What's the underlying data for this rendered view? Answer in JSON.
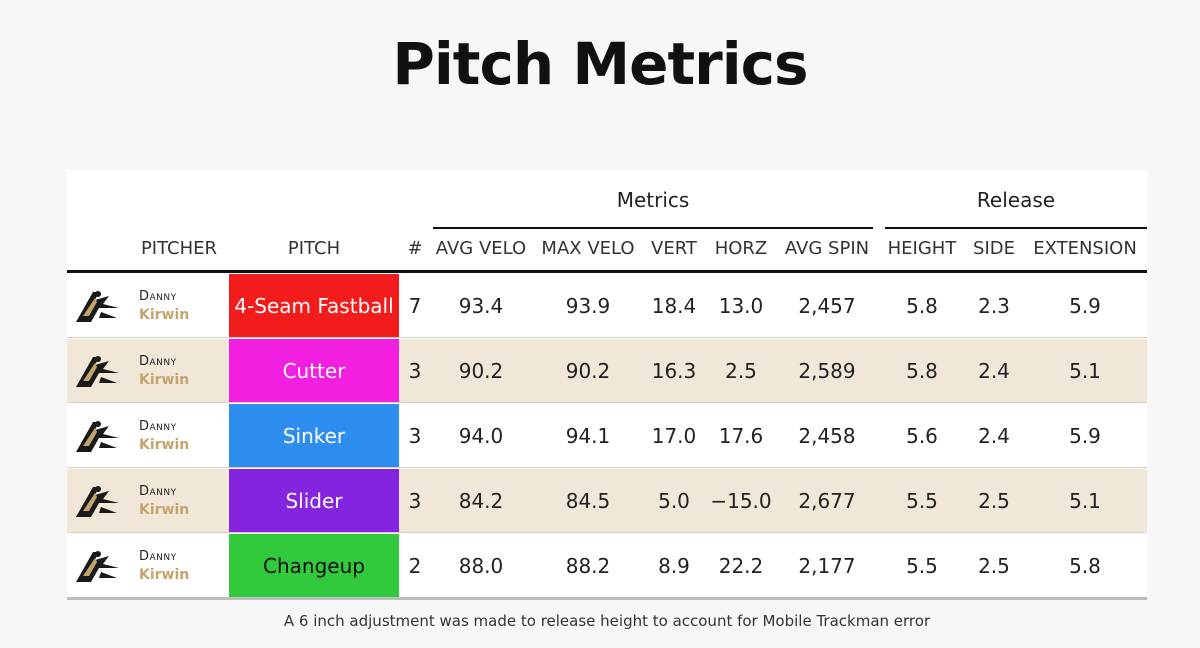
{
  "title": "Pitch Metrics",
  "groups": {
    "metrics": "Metrics",
    "release": "Release"
  },
  "columns": {
    "pitcher": "PITCHER",
    "pitch": "PITCH",
    "count": "#",
    "avg_velo": "AVG VELO",
    "max_velo": "MAX VELO",
    "vert": "VERT",
    "horz": "HORZ",
    "avg_spin": "AVG SPIN",
    "height": "HEIGHT",
    "side": "SIDE",
    "extension": "EXTENSION"
  },
  "rows": [
    {
      "first": "Danny",
      "last": "Kirwin",
      "pitch": "4-Seam Fastball",
      "color": "#f21c1c",
      "text_color": "#ffffff",
      "count": "7",
      "avg_velo": "93.4",
      "max_velo": "93.9",
      "vert": "18.4",
      "horz": "13.0",
      "avg_spin": "2,457",
      "height": "5.8",
      "side": "2.3",
      "extension": "5.9"
    },
    {
      "first": "Danny",
      "last": "Kirwin",
      "pitch": "Cutter",
      "color": "#f21ee0",
      "text_color": "#ffffff",
      "count": "3",
      "avg_velo": "90.2",
      "max_velo": "90.2",
      "vert": "16.3",
      "horz": "2.5",
      "avg_spin": "2,589",
      "height": "5.8",
      "side": "2.4",
      "extension": "5.1"
    },
    {
      "first": "Danny",
      "last": "Kirwin",
      "pitch": "Sinker",
      "color": "#2e8ef0",
      "text_color": "#ffffff",
      "count": "3",
      "avg_velo": "94.0",
      "max_velo": "94.1",
      "vert": "17.0",
      "horz": "17.6",
      "avg_spin": "2,458",
      "height": "5.6",
      "side": "2.4",
      "extension": "5.9"
    },
    {
      "first": "Danny",
      "last": "Kirwin",
      "pitch": "Slider",
      "color": "#8424de",
      "text_color": "#ffffff",
      "count": "3",
      "avg_velo": "84.2",
      "max_velo": "84.5",
      "vert": "5.0",
      "horz": "−15.0",
      "avg_spin": "2,677",
      "height": "5.5",
      "side": "2.5",
      "extension": "5.1"
    },
    {
      "first": "Danny",
      "last": "Kirwin",
      "pitch": "Changeup",
      "color": "#33c93d",
      "text_color": "#111111",
      "count": "2",
      "avg_velo": "88.0",
      "max_velo": "88.2",
      "vert": "8.9",
      "horz": "22.2",
      "avg_spin": "2,177",
      "height": "5.5",
      "side": "2.5",
      "extension": "5.8"
    }
  ],
  "logo_icon": "team-logo-icon",
  "footnote": "A 6 inch adjustment was made to release height to account for Mobile Trackman error"
}
